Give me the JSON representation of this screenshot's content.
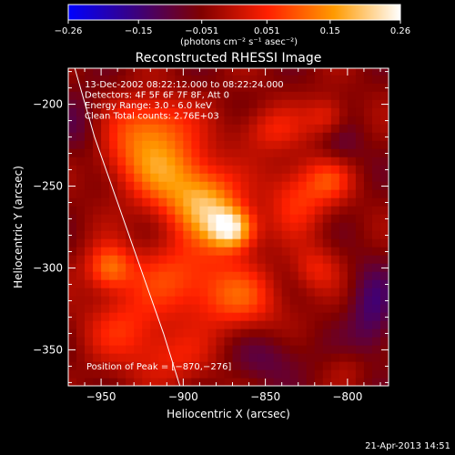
{
  "chart_data": {
    "type": "heatmap",
    "title": "Reconstructed RHESSI Image",
    "xlabel": "Heliocentric X (arcsec)",
    "ylabel": "Heliocentric Y (arcsec)",
    "xlim": [
      -970,
      -775
    ],
    "ylim": [
      -372,
      -178
    ],
    "xticks": [
      -950,
      -900,
      -850,
      -800
    ],
    "xtick_labels": [
      "−950",
      "−900",
      "−850",
      "−800"
    ],
    "yticks": [
      -200,
      -250,
      -300,
      -350
    ],
    "ytick_labels": [
      "−200",
      "−250",
      "−300",
      "−350"
    ],
    "colorbar": {
      "range": [
        -0.26,
        0.26
      ],
      "ticks": [
        -0.26,
        -0.15,
        -0.051,
        0.051,
        0.15,
        0.26
      ],
      "tick_labels": [
        "−0.26",
        "−0.15",
        "−0.051",
        "0.051",
        "0.15",
        "0.26"
      ],
      "unit_label": "(photons cm⁻² s⁻¹ asec⁻²)",
      "colors": [
        "#0000ff",
        "#3a0080",
        "#800000",
        "#ff2000",
        "#ff9a00",
        "#ffffff"
      ]
    },
    "annotations": [
      "13-Dec-2002 08:22:12.000 to 08:22:24.000",
      "Detectors: 4F 5F 6F 7F 8F, Att 0",
      "Energy Range: 3.0 - 6.0 keV",
      "Clean     Total counts: 2.76E+03",
      "Position of Peak = [−870,−276]"
    ],
    "peak": {
      "x": -870,
      "y": -276
    },
    "grid": false,
    "sources": [
      {
        "x": -870,
        "y": -276,
        "amp": 0.26,
        "sx": 10,
        "sy": 9
      },
      {
        "x": -885,
        "y": -262,
        "amp": 0.17,
        "sx": 14,
        "sy": 14
      },
      {
        "x": -905,
        "y": -245,
        "amp": 0.15,
        "sx": 18,
        "sy": 18
      },
      {
        "x": -930,
        "y": -230,
        "amp": 0.1,
        "sx": 20,
        "sy": 14
      },
      {
        "x": -920,
        "y": -210,
        "amp": 0.12,
        "sx": 16,
        "sy": 12
      },
      {
        "x": -945,
        "y": -300,
        "amp": 0.16,
        "sx": 10,
        "sy": 10
      },
      {
        "x": -900,
        "y": -305,
        "amp": 0.12,
        "sx": 22,
        "sy": 16
      },
      {
        "x": -865,
        "y": -320,
        "amp": 0.11,
        "sx": 18,
        "sy": 14
      },
      {
        "x": -935,
        "y": -335,
        "amp": 0.09,
        "sx": 18,
        "sy": 14
      },
      {
        "x": -910,
        "y": -355,
        "amp": 0.08,
        "sx": 18,
        "sy": 12
      },
      {
        "x": -830,
        "y": -255,
        "amp": 0.11,
        "sx": 14,
        "sy": 16
      },
      {
        "x": -810,
        "y": -245,
        "amp": 0.09,
        "sx": 10,
        "sy": 10
      },
      {
        "x": -820,
        "y": -300,
        "amp": 0.08,
        "sx": 10,
        "sy": 10
      },
      {
        "x": -848,
        "y": -215,
        "amp": 0.08,
        "sx": 14,
        "sy": 10
      },
      {
        "x": -812,
        "y": -208,
        "amp": 0.1,
        "sx": 9,
        "sy": 9
      },
      {
        "x": -785,
        "y": -328,
        "amp": -0.09,
        "sx": 10,
        "sy": 22
      },
      {
        "x": -805,
        "y": -225,
        "amp": -0.06,
        "sx": 10,
        "sy": 12
      },
      {
        "x": -845,
        "y": -355,
        "amp": -0.06,
        "sx": 16,
        "sy": 12
      },
      {
        "x": -962,
        "y": -215,
        "amp": -0.06,
        "sx": 12,
        "sy": 16
      },
      {
        "x": -800,
        "y": -360,
        "amp": 0.04,
        "sx": 10,
        "sy": 8
      }
    ],
    "limb": [
      [
        -966,
        -178
      ],
      [
        -954,
        -220
      ],
      [
        -940,
        -260
      ],
      [
        -926,
        -300
      ],
      [
        -912,
        -340
      ],
      [
        -902,
        -372
      ]
    ]
  },
  "footer": {
    "timestamp": "21-Apr-2013 14:51"
  }
}
